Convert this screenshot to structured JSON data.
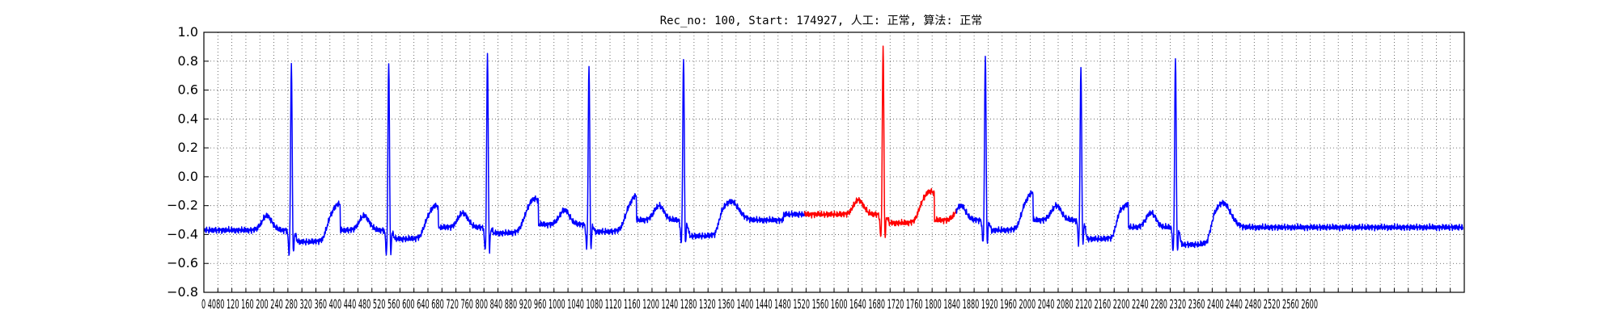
{
  "chart_data": {
    "type": "line",
    "title": "Rec_no: 100, Start: 174927, 人工: 正常, 算法: 正常",
    "xlabel": "",
    "ylabel": "",
    "xlim": [
      0,
      3600
    ],
    "ylim": [
      -0.8,
      1.0
    ],
    "grid": true,
    "y_ticks": [
      "1.0",
      "0.8",
      "0.6",
      "0.4",
      "0.2",
      "0.0",
      "−0.2",
      "−0.4",
      "−0.6",
      "−0.8"
    ],
    "x_tick_text": "0 4080 120 160 200 240 280 320 360 400 440 480 520 560 600 640 680 720 760 800 840 880 920 960 1000 1040 1080 1120 1160 1200 1240 1280 1320 1360 1400 1440 1480 1520 1560 1600 1640 1680 1720 1760 1800 1840 1880 1920 1960 2000 2040 2080 2120 2160 2200 2240 2280 2320 2360 2400 2440 2480 2520 2560 2600",
    "series": [
      {
        "color": "#0000ff",
        "x_range": [
          0,
          1716
        ],
        "segment": "before"
      },
      {
        "color": "#ff0000",
        "x_range": [
          1716,
          2148
        ],
        "segment": "highlighted beat"
      },
      {
        "color": "#0000ff",
        "x_range": [
          2148,
          3596
        ],
        "segment": "after"
      }
    ],
    "beats": [
      {
        "r": 250,
        "amp": 0.81,
        "baseline": -0.37,
        "t": -0.24,
        "st": -0.45
      },
      {
        "r": 528,
        "amp": 0.82,
        "baseline": -0.37,
        "t": -0.25,
        "st": -0.43
      },
      {
        "r": 810,
        "amp": 0.86,
        "baseline": -0.35,
        "t": -0.2,
        "st": -0.39
      },
      {
        "r": 1100,
        "amp": 0.79,
        "baseline": -0.33,
        "t": -0.18,
        "st": -0.38
      },
      {
        "r": 1370,
        "amp": 0.84,
        "baseline": -0.3,
        "t": -0.22,
        "st": -0.41
      },
      {
        "r": 1940,
        "amp": 0.92,
        "baseline": -0.26,
        "t": -0.15,
        "st": -0.32
      },
      {
        "r": 2232,
        "amp": 0.86,
        "baseline": -0.3,
        "t": -0.16,
        "st": -0.37
      },
      {
        "r": 2505,
        "amp": 0.79,
        "baseline": -0.3,
        "t": -0.24,
        "st": -0.43
      },
      {
        "r": 2775,
        "amp": 0.86,
        "baseline": -0.35,
        "t": -0.23,
        "st": -0.47
      }
    ]
  }
}
